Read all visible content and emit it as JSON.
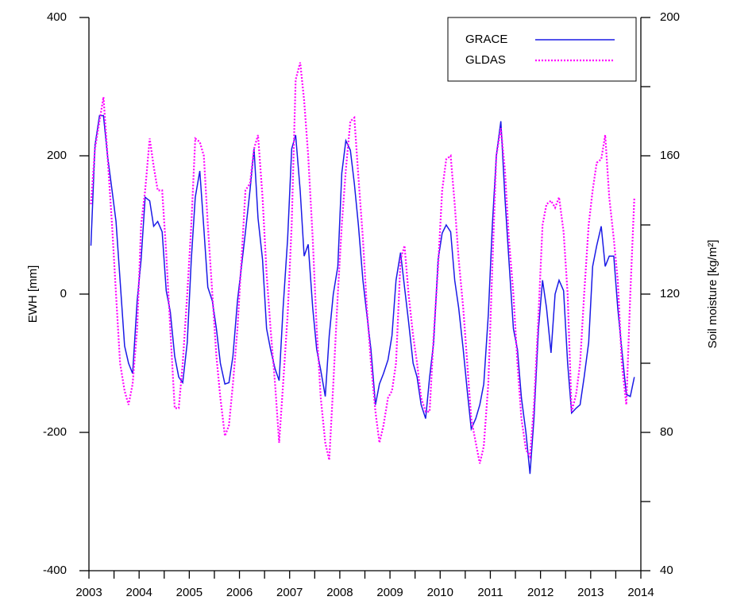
{
  "chart_data": {
    "type": "line",
    "xlabel": null,
    "ylabel": "EWH [mm]",
    "y2label": "Soil moisture [kg/m²]",
    "xlim": [
      2003,
      2014
    ],
    "xticks": [
      2003,
      2004,
      2005,
      2006,
      2007,
      2008,
      2009,
      2010,
      2011,
      2012,
      2013,
      2014
    ],
    "ylim": [
      -400,
      400
    ],
    "yticks": [
      -400,
      -200,
      0,
      200,
      400
    ],
    "y2lim": [
      40,
      200
    ],
    "y2ticks": [
      40,
      80,
      120,
      160,
      200
    ],
    "legend": "upper right",
    "x": [
      2003.04,
      2003.12,
      2003.21,
      2003.29,
      2003.37,
      2003.46,
      2003.54,
      2003.62,
      2003.71,
      2003.79,
      2003.87,
      2003.96,
      2004.04,
      2004.12,
      2004.21,
      2004.29,
      2004.37,
      2004.46,
      2004.54,
      2004.62,
      2004.71,
      2004.79,
      2004.87,
      2004.96,
      2005.04,
      2005.12,
      2005.21,
      2005.29,
      2005.37,
      2005.46,
      2005.54,
      2005.62,
      2005.71,
      2005.79,
      2005.87,
      2005.96,
      2006.04,
      2006.12,
      2006.21,
      2006.29,
      2006.37,
      2006.46,
      2006.54,
      2006.62,
      2006.71,
      2006.79,
      2006.87,
      2006.96,
      2007.04,
      2007.12,
      2007.21,
      2007.29,
      2007.37,
      2007.46,
      2007.54,
      2007.62,
      2007.71,
      2007.79,
      2007.87,
      2007.96,
      2008.04,
      2008.12,
      2008.21,
      2008.29,
      2008.37,
      2008.46,
      2008.54,
      2008.62,
      2008.71,
      2008.79,
      2008.87,
      2008.96,
      2009.04,
      2009.12,
      2009.21,
      2009.29,
      2009.37,
      2009.46,
      2009.54,
      2009.62,
      2009.71,
      2009.79,
      2009.87,
      2009.96,
      2010.04,
      2010.12,
      2010.21,
      2010.29,
      2010.37,
      2010.46,
      2010.54,
      2010.62,
      2010.71,
      2010.79,
      2010.87,
      2010.96,
      2011.04,
      2011.12,
      2011.21,
      2011.29,
      2011.37,
      2011.46,
      2011.54,
      2011.62,
      2011.71,
      2011.79,
      2011.87,
      2011.96,
      2012.04,
      2012.12,
      2012.21,
      2012.29,
      2012.37,
      2012.46,
      2012.54,
      2012.62,
      2012.71,
      2012.79,
      2012.87,
      2012.96,
      2013.04,
      2013.12,
      2013.21,
      2013.29,
      2013.37,
      2013.46,
      2013.54,
      2013.62,
      2013.71,
      2013.79,
      2013.87
    ],
    "series": [
      {
        "name": "GRACE",
        "color": "#1a1ae6",
        "dash": "solid",
        "axis": "y",
        "values": [
          70,
          215,
          258,
          258,
          200,
          150,
          105,
          20,
          -75,
          -100,
          -115,
          -10,
          50,
          140,
          135,
          98,
          105,
          90,
          5,
          -25,
          -90,
          -120,
          -128,
          -70,
          50,
          140,
          178,
          95,
          10,
          -10,
          -50,
          -100,
          -130,
          -128,
          -90,
          -10,
          40,
          90,
          150,
          210,
          110,
          50,
          -50,
          -80,
          -108,
          -125,
          -20,
          80,
          210,
          230,
          150,
          55,
          72,
          -20,
          -80,
          -110,
          -148,
          -60,
          0,
          40,
          175,
          222,
          208,
          160,
          100,
          20,
          -30,
          -80,
          -160,
          -130,
          -115,
          -95,
          -60,
          20,
          60,
          10,
          -40,
          -100,
          -120,
          -160,
          -180,
          -120,
          -70,
          50,
          88,
          100,
          90,
          20,
          -20,
          -80,
          -140,
          -195,
          -180,
          -160,
          -130,
          -30,
          100,
          200,
          250,
          140,
          50,
          -50,
          -80,
          -150,
          -200,
          -260,
          -180,
          -50,
          20,
          -20,
          -85,
          0,
          20,
          5,
          -100,
          -172,
          -165,
          -160,
          -120,
          -70,
          40,
          70,
          98,
          40,
          55,
          55,
          -20,
          -80,
          -145,
          -148,
          -120
        ]
      },
      {
        "name": "GLDAS",
        "color": "#ff00ff",
        "dash": "dotted",
        "axis": "y2",
        "values": [
          146,
          162,
          170,
          177,
          160,
          140,
          120,
          100,
          92,
          88,
          94,
          110,
          140,
          150,
          165,
          157,
          150,
          150,
          132,
          110,
          87,
          87,
          100,
          120,
          140,
          165,
          164,
          160,
          140,
          120,
          102,
          90,
          79,
          82,
          94,
          110,
          130,
          150,
          152,
          162,
          166,
          148,
          126,
          110,
          94,
          77,
          94,
          114,
          140,
          182,
          187,
          176,
          160,
          136,
          110,
          90,
          77,
          72,
          94,
          120,
          140,
          156,
          170,
          171,
          154,
          136,
          116,
          100,
          86,
          77,
          82,
          90,
          92,
          100,
          130,
          134,
          120,
          108,
          100,
          90,
          86,
          86,
          108,
          128,
          150,
          159,
          160,
          146,
          130,
          116,
          100,
          84,
          77,
          71,
          76,
          94,
          128,
          160,
          168,
          156,
          136,
          120,
          100,
          84,
          75,
          73,
          88,
          114,
          140,
          146,
          147,
          145,
          148,
          138,
          120,
          86,
          91,
          100,
          120,
          140,
          150,
          158,
          159,
          166,
          148,
          136,
          124,
          100,
          88,
          120,
          148
        ]
      }
    ]
  }
}
